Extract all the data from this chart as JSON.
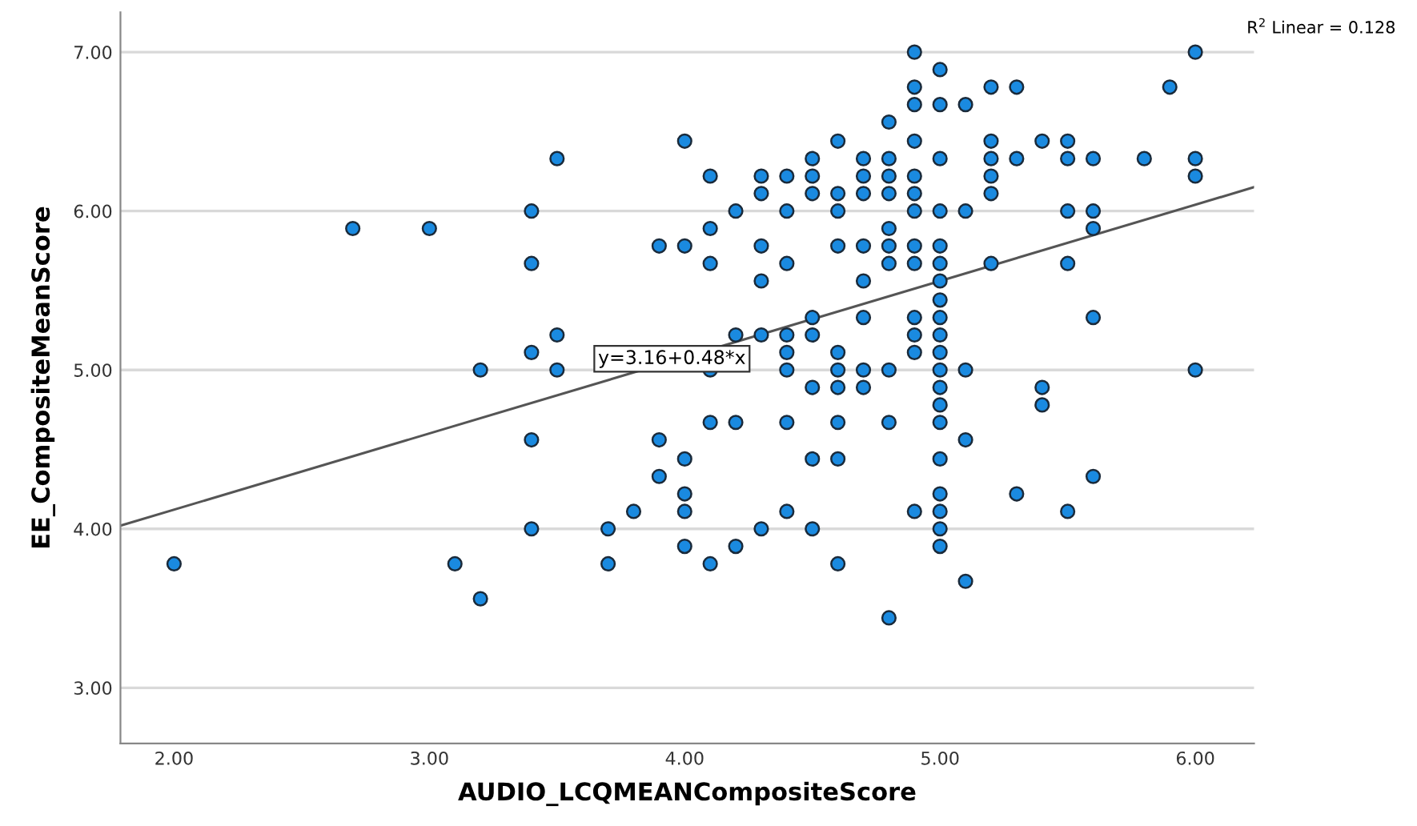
{
  "chart_data": {
    "type": "scatter",
    "xlabel": "AUDIO_LCQMEANCompositeScore",
    "ylabel": "EE_CompositeMeanScore",
    "xlim": [
      1.79,
      6.23
    ],
    "ylim": [
      2.65,
      7.25
    ],
    "xticks": [
      {
        "value": 2,
        "label": "2.00"
      },
      {
        "value": 3,
        "label": "3.00"
      },
      {
        "value": 4,
        "label": "4.00"
      },
      {
        "value": 5,
        "label": "5.00"
      },
      {
        "value": 6,
        "label": "6.00"
      }
    ],
    "yticks": [
      {
        "value": 3,
        "label": "3.00"
      },
      {
        "value": 4,
        "label": "4.00"
      },
      {
        "value": 5,
        "label": "5.00"
      },
      {
        "value": 6,
        "label": "6.00"
      },
      {
        "value": 7,
        "label": "7.00"
      }
    ],
    "grid": "y",
    "series": [
      {
        "color": "#1a8ae0",
        "marker": "circle",
        "x": [
          2.0,
          2.7,
          3.0,
          3.1,
          3.2,
          3.2,
          3.4,
          3.4,
          3.4,
          3.4,
          3.4,
          3.5,
          3.5,
          3.5,
          3.7,
          3.7,
          3.8,
          3.9,
          3.9,
          3.9,
          4.0,
          4.0,
          4.0,
          4.0,
          4.0,
          4.0,
          4.1,
          4.1,
          4.1,
          4.1,
          4.1,
          4.1,
          4.2,
          4.2,
          4.2,
          4.2,
          4.3,
          4.3,
          4.3,
          4.3,
          4.3,
          4.3,
          4.4,
          4.4,
          4.4,
          4.4,
          4.4,
          4.4,
          4.4,
          4.4,
          4.5,
          4.5,
          4.5,
          4.5,
          4.5,
          4.5,
          4.5,
          4.5,
          4.6,
          4.6,
          4.6,
          4.6,
          4.6,
          4.6,
          4.6,
          4.6,
          4.6,
          4.6,
          4.7,
          4.7,
          4.7,
          4.7,
          4.7,
          4.7,
          4.7,
          4.7,
          4.8,
          4.8,
          4.8,
          4.8,
          4.8,
          4.8,
          4.8,
          4.8,
          4.8,
          4.8,
          4.9,
          4.9,
          4.9,
          4.9,
          4.9,
          4.9,
          4.9,
          4.9,
          4.9,
          4.9,
          4.9,
          4.9,
          4.9,
          5.0,
          5.0,
          5.0,
          5.0,
          5.0,
          5.0,
          5.0,
          5.0,
          5.0,
          5.0,
          5.0,
          5.0,
          5.0,
          5.0,
          5.0,
          5.0,
          5.0,
          5.0,
          5.0,
          5.0,
          5.1,
          5.1,
          5.1,
          5.1,
          5.1,
          5.2,
          5.2,
          5.2,
          5.2,
          5.2,
          5.2,
          5.3,
          5.3,
          5.3,
          5.4,
          5.4,
          5.4,
          5.5,
          5.5,
          5.5,
          5.5,
          5.5,
          5.6,
          5.6,
          5.6,
          5.6,
          5.6,
          5.8,
          5.9,
          6.0,
          6.0,
          6.0,
          6.0
        ],
        "values": [
          3.78,
          5.89,
          5.89,
          3.78,
          5.0,
          3.56,
          6.0,
          5.67,
          5.11,
          4.56,
          4.0,
          6.33,
          5.22,
          5.0,
          4.0,
          3.78,
          4.11,
          5.78,
          4.56,
          4.33,
          6.44,
          5.78,
          4.44,
          4.22,
          4.11,
          3.89,
          6.22,
          5.89,
          5.67,
          5.0,
          4.67,
          3.78,
          6.0,
          5.22,
          4.67,
          3.89,
          6.22,
          6.11,
          5.78,
          5.56,
          5.22,
          4.0,
          6.22,
          6.0,
          5.67,
          5.22,
          5.11,
          5.0,
          4.67,
          4.11,
          6.33,
          6.22,
          6.11,
          5.33,
          5.22,
          4.89,
          4.44,
          4.0,
          6.44,
          6.11,
          6.0,
          5.78,
          5.11,
          5.0,
          4.89,
          4.67,
          4.44,
          3.78,
          6.33,
          6.22,
          6.11,
          5.78,
          5.56,
          5.33,
          5.0,
          4.89,
          6.56,
          6.33,
          6.22,
          6.11,
          5.89,
          5.78,
          5.67,
          5.0,
          4.67,
          3.44,
          7.0,
          6.78,
          6.67,
          6.44,
          6.22,
          6.11,
          6.0,
          5.78,
          5.67,
          5.33,
          5.22,
          5.11,
          4.11,
          6.89,
          6.67,
          6.33,
          6.0,
          5.78,
          5.67,
          5.56,
          5.44,
          5.33,
          5.22,
          5.11,
          5.0,
          4.89,
          4.78,
          4.67,
          4.44,
          4.22,
          4.11,
          4.0,
          3.89,
          6.67,
          6.0,
          5.0,
          4.56,
          3.67,
          6.78,
          6.44,
          6.33,
          6.22,
          6.11,
          5.67,
          6.78,
          6.33,
          4.22,
          6.44,
          4.89,
          4.78,
          6.44,
          6.33,
          6.0,
          5.67,
          4.11,
          6.33,
          6.0,
          5.89,
          5.33,
          4.33,
          6.33,
          6.78,
          7.0,
          6.33,
          6.22,
          5.0
        ]
      },
      {
        "type": "line",
        "color": "#555555",
        "x": [
          1.79,
          6.23
        ],
        "values": [
          4.02,
          6.15
        ]
      }
    ],
    "annotations": [
      {
        "text": "y=3.16+0.48*x",
        "x": 3.95,
        "y": 5.07
      },
      "R$^{2}$ Linear = 0.128"
    ]
  }
}
